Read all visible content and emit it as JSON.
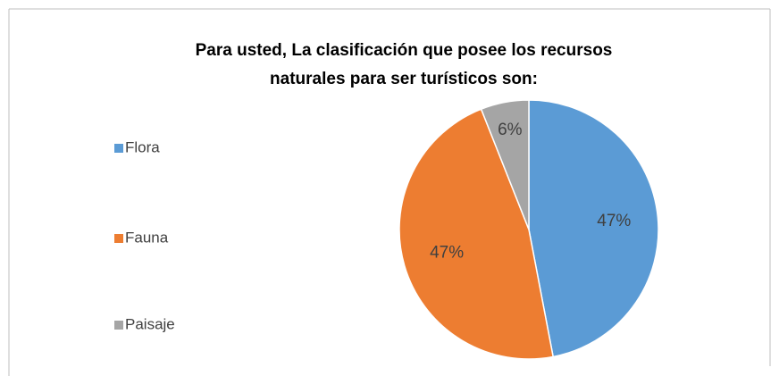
{
  "chart_data": {
    "type": "pie",
    "title": [
      "Para usted, La clasificación que posee los recursos",
      "naturales  para ser turísticos son:"
    ],
    "categories": [
      "Flora",
      "Fauna",
      "Paisaje"
    ],
    "values": [
      47,
      47,
      6
    ],
    "value_labels": [
      "47%",
      "47%",
      "6%"
    ],
    "colors": [
      "#5b9bd5",
      "#ed7d31",
      "#a5a5a5"
    ],
    "legend": "left"
  }
}
